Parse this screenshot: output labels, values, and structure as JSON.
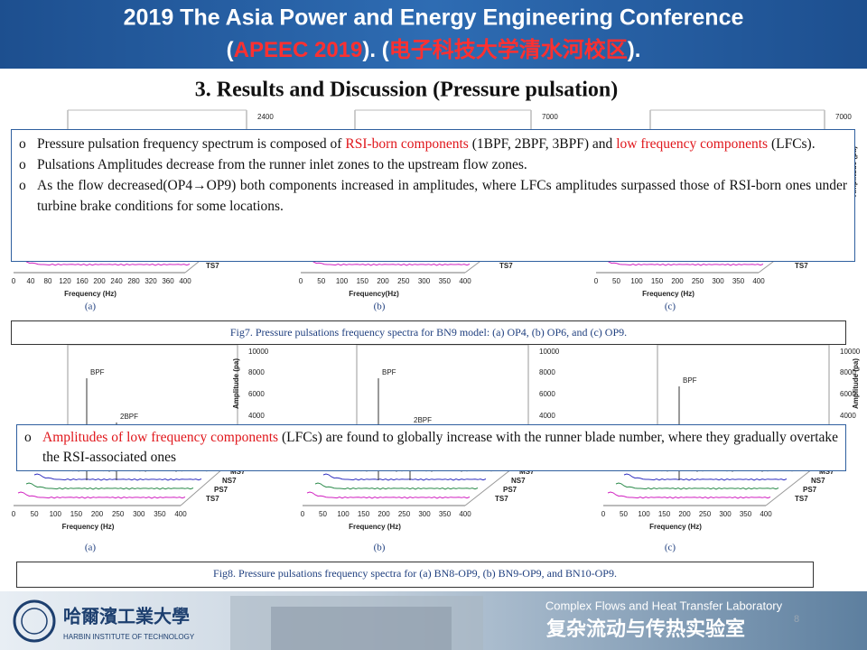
{
  "header": {
    "title_line1": "2019 The Asia Power and Energy Engineering Conference",
    "title_line2": [
      {
        "text": "(",
        "red": false
      },
      {
        "text": "APEEC 2019",
        "red": true
      },
      {
        "text": "). (",
        "red": false
      },
      {
        "text": "电子科技大学清水河校区",
        "red": true
      },
      {
        "text": ").",
        "red": false
      }
    ]
  },
  "section_title": "3. Results and Discussion (Pressure pulsation)",
  "box1": {
    "bullets": [
      [
        {
          "text": "Pressure pulsation frequency spectrum is composed of ",
          "red": false
        },
        {
          "text": "RSI-born components",
          "red": true
        },
        {
          "text": " (1BPF, 2BPF, 3BPF) and ",
          "red": false
        },
        {
          "text": "low frequency components",
          "red": true
        },
        {
          "text": " (LFCs).",
          "red": false
        }
      ],
      [
        {
          "text": "Pulsations Amplitudes decrease from the runner inlet zones to the upstream flow zones.",
          "red": false
        }
      ],
      [
        {
          "text": "As the flow decreased(OP4→OP9) both components increased in amplitudes, where LFCs amplitudes surpassed those of RSI-born ones under turbine brake conditions for some locations.",
          "red": false
        }
      ]
    ]
  },
  "box2": {
    "bullets": [
      [
        {
          "text": "Amplitudes of low frequency components",
          "red": true
        },
        {
          "text": " (LFCs) are found to globally increase with the runner blade number, where they gradually overtake the RSI-associated ones",
          "red": false
        }
      ]
    ]
  },
  "fig7": {
    "panels": [
      "(a)",
      "(b)",
      "(c)"
    ],
    "caption": "Fig7. Pressure pulsations frequency spectra for BN9 model: (a) OP4,  (b) OP6, and (c) OP9."
  },
  "fig8": {
    "panels": [
      "(a)",
      "(b)",
      "(c)"
    ],
    "caption": "Fig8. Pressure pulsations frequency spectra for (a) BN8-OP9, (b) BN9-OP9, and BN10-OP9."
  },
  "plots": [
    {
      "x_ticks": [
        0,
        40,
        80,
        120,
        160,
        200,
        240,
        280,
        320,
        360,
        400
      ],
      "x_label": "Frequency (Hz)",
      "y_ticks": [
        2400
      ],
      "peaks": [],
      "series": [
        "TS7"
      ]
    },
    {
      "x_ticks": [
        0,
        50,
        100,
        150,
        200,
        250,
        300,
        350,
        400
      ],
      "x_label": "Frequency(Hz)",
      "y_ticks": [
        7000
      ],
      "peaks": [],
      "series": [
        "TS7"
      ]
    },
    {
      "x_ticks": [
        0,
        50,
        100,
        150,
        200,
        250,
        300,
        350,
        400
      ],
      "x_label": "Frequency (Hz)",
      "y_ticks": [
        7000
      ],
      "y_label": "Amplitude (pa)",
      "peaks": [],
      "series": [
        "TS7"
      ]
    },
    {
      "x_ticks": [
        0,
        50,
        100,
        150,
        200,
        250,
        300,
        350,
        400
      ],
      "x_label": "Frequency (Hz)",
      "y_ticks": [
        10000,
        8000,
        6000,
        4000
      ],
      "y_label": "Amplitude (pa)",
      "peaks": [
        "BPF",
        "2BPF"
      ],
      "series": [
        "MS7",
        "NS7",
        "PS7",
        "TS7"
      ]
    },
    {
      "x_ticks": [
        0,
        50,
        100,
        150,
        200,
        250,
        300,
        350,
        400
      ],
      "x_label": "Frequency (Hz)",
      "y_ticks": [
        10000,
        8000,
        6000,
        4000
      ],
      "peaks": [
        "BPF",
        "2BPF"
      ],
      "series": [
        "MS7",
        "NS7",
        "PS7",
        "TS7"
      ]
    },
    {
      "x_ticks": [
        0,
        50,
        100,
        150,
        200,
        250,
        300,
        350,
        400
      ],
      "x_label": "Frequency (Hz)",
      "y_ticks": [
        10000,
        8000,
        6000,
        4000
      ],
      "y_label": "Amplitude (pa)",
      "peaks": [
        "BPF"
      ],
      "series": [
        "MS7",
        "NS7",
        "PS7",
        "TS7"
      ]
    }
  ],
  "footer": {
    "lab_en": "Complex Flows and Heat Transfer Laboratory",
    "lab_cn": "复杂流动与传热实验室",
    "univ_cn": "哈爾濱工業大學",
    "univ_en": "HARBIN INSTITUTE OF TECHNOLOGY",
    "page": "8"
  }
}
